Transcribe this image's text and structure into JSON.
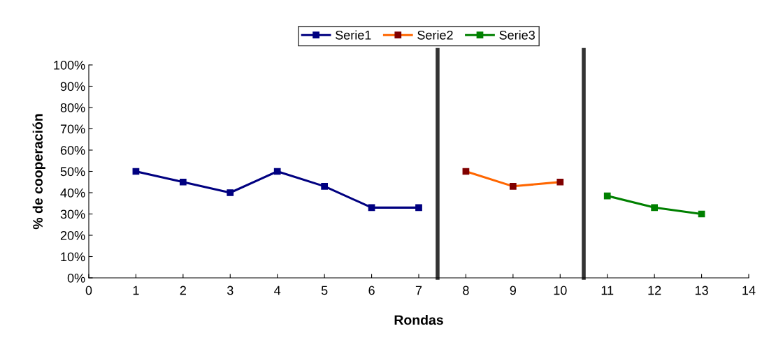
{
  "chart_data": {
    "type": "line",
    "xlabel": "Rondas",
    "ylabel": "% de cooperación",
    "xlim": [
      0,
      14
    ],
    "xticks": [
      0,
      1,
      2,
      3,
      4,
      5,
      6,
      7,
      8,
      9,
      10,
      11,
      12,
      13,
      14
    ],
    "ylim": [
      0,
      100
    ],
    "yticks": [
      {
        "value": 0,
        "label": "0%"
      },
      {
        "value": 10,
        "label": "10%"
      },
      {
        "value": 20,
        "label": "20%"
      },
      {
        "value": 30,
        "label": "30%"
      },
      {
        "value": 40,
        "label": "40%"
      },
      {
        "value": 50,
        "label": "50%"
      },
      {
        "value": 60,
        "label": "60%"
      },
      {
        "value": 70,
        "label": "70%"
      },
      {
        "value": 80,
        "label": "80%"
      },
      {
        "value": 90,
        "label": "90%"
      },
      {
        "value": 100,
        "label": "100%"
      }
    ],
    "series": [
      {
        "name": "Serie1",
        "color": "#000080",
        "x": [
          1,
          2,
          3,
          4,
          5,
          6,
          7
        ],
        "values": [
          50,
          45,
          40,
          50,
          43,
          33,
          33
        ]
      },
      {
        "name": "Serie2",
        "color": "#ff6600",
        "colors": [
          "#800000",
          "#800000",
          "#800000"
        ],
        "x": [
          8,
          9,
          10
        ],
        "values": [
          50,
          43,
          45
        ]
      },
      {
        "name": "Serie3",
        "color": "#008000",
        "x": [
          11,
          12,
          13
        ],
        "values": [
          38.5,
          33,
          30
        ]
      }
    ],
    "ref_lines": [
      {
        "axis": "x",
        "value": 7.4,
        "color": "#333333"
      },
      {
        "axis": "x",
        "value": 10.5,
        "color": "#333333"
      }
    ],
    "marker": "square",
    "line_style": "solid",
    "grid": false,
    "legend": "top"
  }
}
